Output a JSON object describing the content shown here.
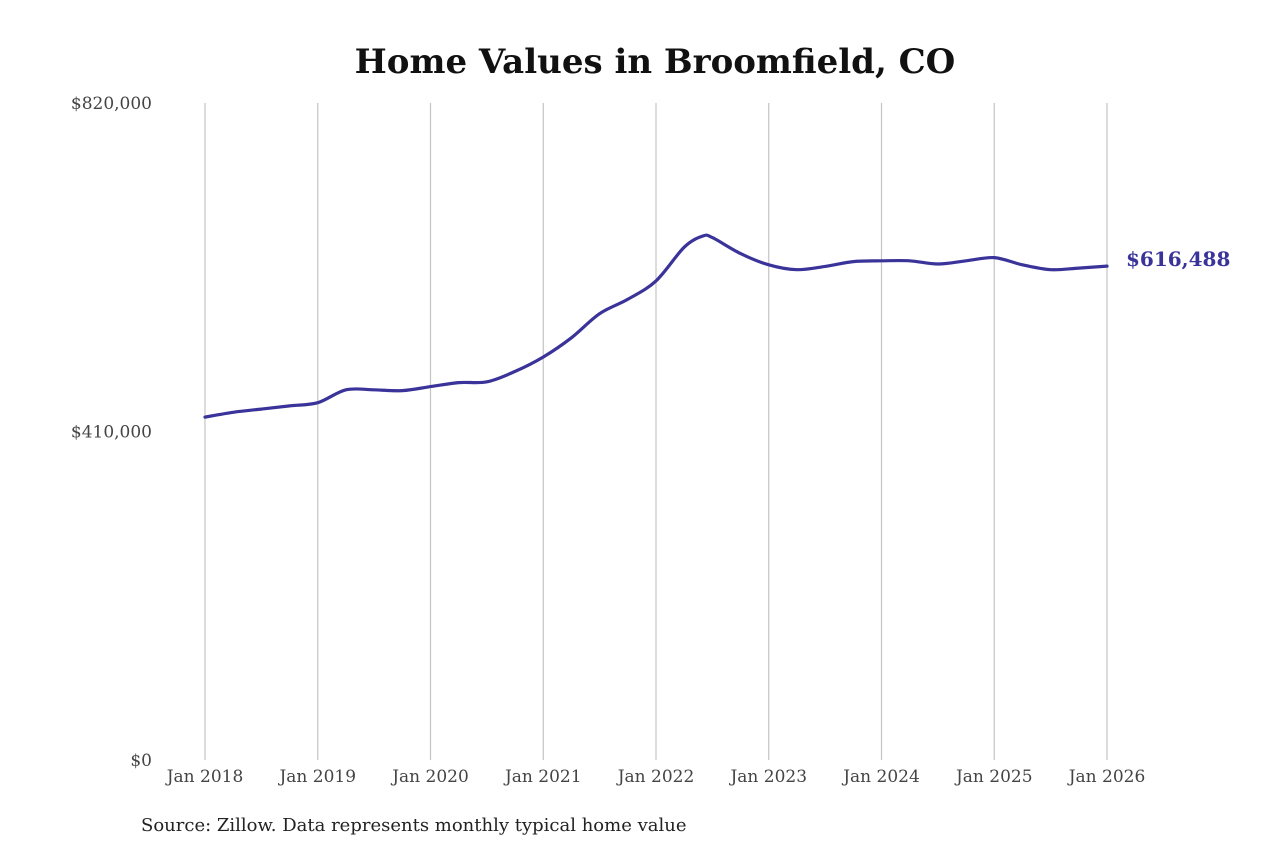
{
  "chart_data": {
    "type": "line",
    "title": "Home Values in Broomfield, CO",
    "xlabel": "",
    "ylabel": "",
    "ylim": [
      0,
      820000
    ],
    "yticks": [
      {
        "value": 0,
        "label": "$0"
      },
      {
        "value": 410000,
        "label": "$410,000"
      },
      {
        "value": 820000,
        "label": "$820,000"
      }
    ],
    "xticks": [
      {
        "value": 2018,
        "label": "Jan 2018"
      },
      {
        "value": 2019,
        "label": "Jan 2019"
      },
      {
        "value": 2020,
        "label": "Jan 2020"
      },
      {
        "value": 2021,
        "label": "Jan 2021"
      },
      {
        "value": 2022,
        "label": "Jan 2022"
      },
      {
        "value": 2023,
        "label": "Jan 2023"
      },
      {
        "value": 2024,
        "label": "Jan 2024"
      },
      {
        "value": 2025,
        "label": "Jan 2025"
      },
      {
        "value": 2026,
        "label": "Jan 2026"
      }
    ],
    "xlim": [
      2018,
      2026
    ],
    "grid": "vertical",
    "series": [
      {
        "color": "#3a3399",
        "x": [
          "Jan 2018",
          "Apr 2018",
          "Jul 2018",
          "Oct 2018",
          "Jan 2019",
          "Apr 2019",
          "Jul 2019",
          "Oct 2019",
          "Jan 2020",
          "Apr 2020",
          "Jul 2020",
          "Oct 2020",
          "Jan 2021",
          "Apr 2021",
          "Jul 2021",
          "Oct 2021",
          "Jan 2022",
          "Apr 2022",
          "Jun 2022",
          "Jul 2022",
          "Oct 2022",
          "Jan 2023",
          "Apr 2023",
          "Jul 2023",
          "Oct 2023",
          "Jan 2024",
          "Apr 2024",
          "Jul 2024",
          "Oct 2024",
          "Jan 2025",
          "Apr 2025",
          "Jul 2025",
          "Oct 2025",
          "Jan 2026"
        ],
        "values": [
          428000,
          434000,
          438000,
          442000,
          446000,
          462000,
          462000,
          461000,
          466000,
          471000,
          472000,
          485000,
          503000,
          527000,
          557000,
          575000,
          598000,
          640000,
          654000,
          652000,
          632000,
          618000,
          612000,
          616000,
          622000,
          623000,
          623000,
          619000,
          623000,
          627000,
          618000,
          612000,
          614000,
          616488
        ]
      }
    ],
    "end_label": "$616,488",
    "source": "Source: Zillow. Data represents monthly typical home value"
  }
}
